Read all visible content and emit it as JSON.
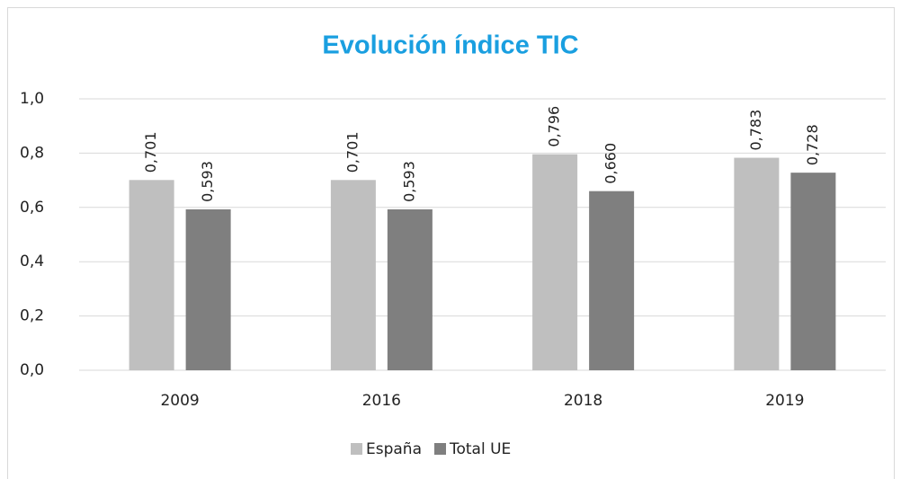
{
  "chart_data": {
    "type": "bar",
    "title": "Evolución índice TIC",
    "categories": [
      "2009",
      "2016",
      "2018",
      "2019"
    ],
    "series": [
      {
        "name": "España",
        "color": "#bfbfbf",
        "values": [
          0.701,
          0.701,
          0.796,
          0.783
        ],
        "value_labels": [
          "0,701",
          "0,701",
          "0,796",
          "0,783"
        ]
      },
      {
        "name": "Total UE",
        "color": "#7f7f7f",
        "values": [
          0.593,
          0.593,
          0.66,
          0.728
        ],
        "value_labels": [
          "0,593",
          "0,593",
          "0,660",
          "0,728"
        ]
      }
    ],
    "ylim": [
      0,
      1
    ],
    "yticks": [
      {
        "value": 0,
        "label": "0,0"
      },
      {
        "value": 0.2,
        "label": "0,2"
      },
      {
        "value": 0.4,
        "label": "0,4"
      },
      {
        "value": 0.6,
        "label": "0,6"
      },
      {
        "value": 0.8,
        "label": "0,8"
      },
      {
        "value": 1,
        "label": "1,0"
      }
    ],
    "grid": true,
    "legend": "bottom"
  }
}
